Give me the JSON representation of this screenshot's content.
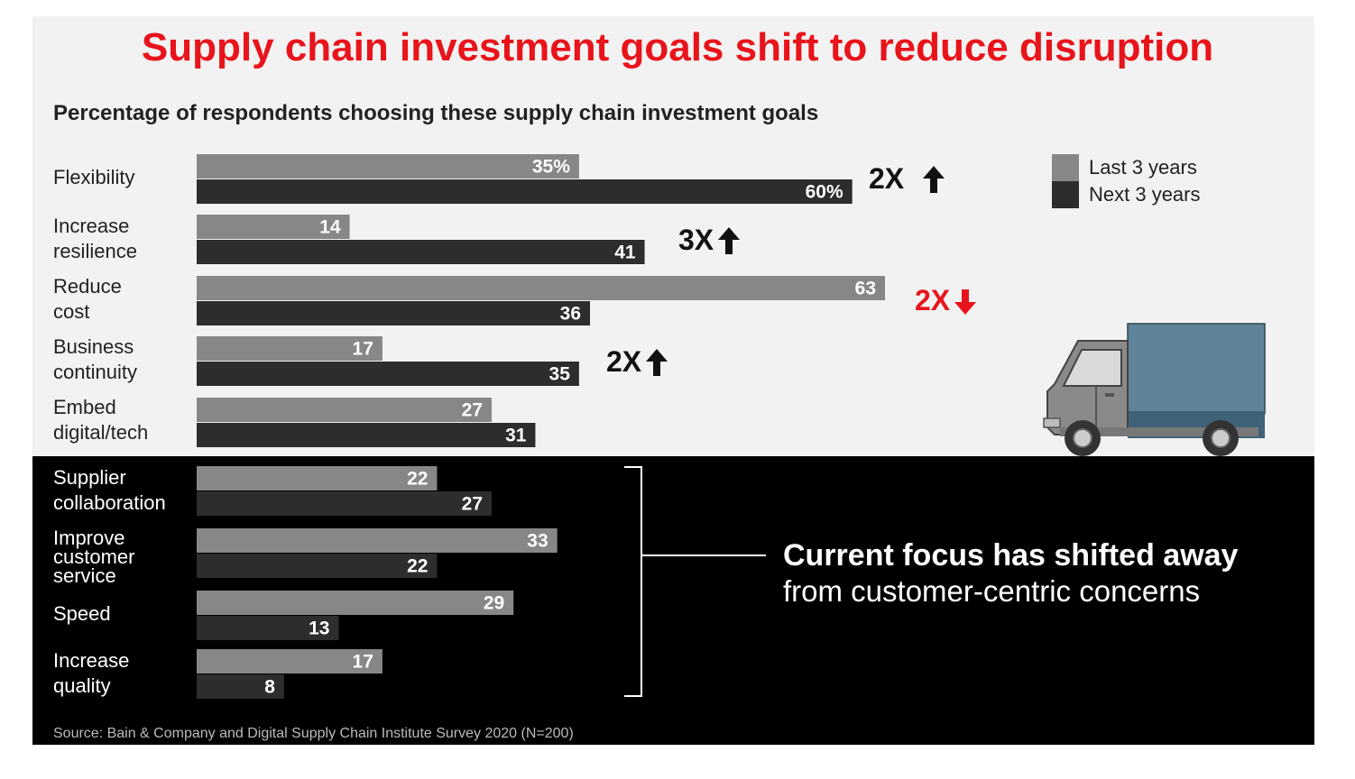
{
  "title": "Supply chain investment goals shift to reduce disruption",
  "subtitle": "Percentage of respondents choosing these supply chain investment goals",
  "colors": {
    "title": "#e8141b",
    "last": "#878787",
    "next": "#2d2d2d",
    "background": "#f2f2f2",
    "panel": "#000000",
    "truck_body": "#5f8399",
    "truck_cab": "#8a8a8a"
  },
  "legend": {
    "last": "Last 3 years",
    "next": "Next 3 years"
  },
  "ratios": [
    {
      "text": "2X",
      "direction": "up",
      "color": "#111111"
    },
    {
      "text": "3X",
      "direction": "up",
      "color": "#111111"
    },
    {
      "text": "2X",
      "direction": "down",
      "color": "#e8141b"
    },
    {
      "text": "2X",
      "direction": "up",
      "color": "#111111"
    }
  ],
  "callout": {
    "bold": "Current focus has shifted away",
    "light": "from customer-centric concerns"
  },
  "source": "Source: Bain & Company and Digital Supply Chain Institute Survey 2020 (N=200)",
  "chart_data": {
    "type": "bar",
    "orientation": "horizontal",
    "title": "Percentage of respondents choosing these supply chain investment goals",
    "categories": [
      "Flexibility",
      "Increase\nresilience",
      "Reduce\ncost",
      "Business\ncontinuity",
      "Embed\ndigital/tech",
      "Supplier\ncollaboration",
      "Improve\ncustomer\nservice",
      "Speed",
      "Increase\nquality"
    ],
    "series": [
      {
        "name": "Last 3 years",
        "values": [
          35,
          14,
          63,
          17,
          27,
          22,
          33,
          29,
          17
        ],
        "labels": [
          "35%",
          "14",
          "63",
          "17",
          "27",
          "22",
          "33",
          "29",
          "17"
        ]
      },
      {
        "name": "Next 3 years",
        "values": [
          60,
          41,
          36,
          35,
          31,
          27,
          22,
          13,
          8
        ],
        "labels": [
          "60%",
          "41",
          "36",
          "35",
          "31",
          "27",
          "22",
          "13",
          "8"
        ]
      }
    ],
    "xlim": [
      0,
      63
    ],
    "unit": "%",
    "legend": "top-right"
  }
}
